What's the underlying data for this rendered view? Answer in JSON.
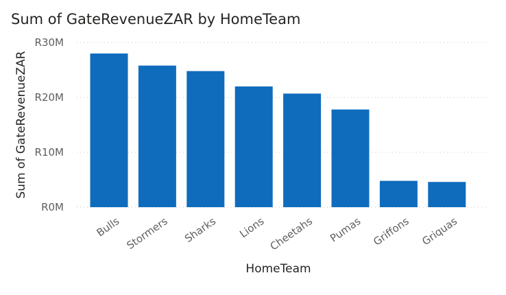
{
  "chart_data": {
    "type": "bar",
    "title": "Sum of GateRevenueZAR by HomeTeam",
    "xlabel": "HomeTeam",
    "ylabel": "Sum of GateRevenueZAR",
    "categories": [
      "Bulls",
      "Stormers",
      "Sharks",
      "Lions",
      "Cheetahs",
      "Pumas",
      "Griffons",
      "Griquas"
    ],
    "values": [
      28000000,
      25800000,
      24800000,
      22000000,
      20700000,
      17800000,
      4800000,
      4600000
    ],
    "ylim": [
      0,
      30000000
    ],
    "yticks": [
      {
        "value": 0,
        "label": "R0M"
      },
      {
        "value": 10000000,
        "label": "R10M"
      },
      {
        "value": 20000000,
        "label": "R20M"
      },
      {
        "value": 30000000,
        "label": "R30M"
      }
    ],
    "bar_color": "#0f6cbd",
    "grid": true
  }
}
